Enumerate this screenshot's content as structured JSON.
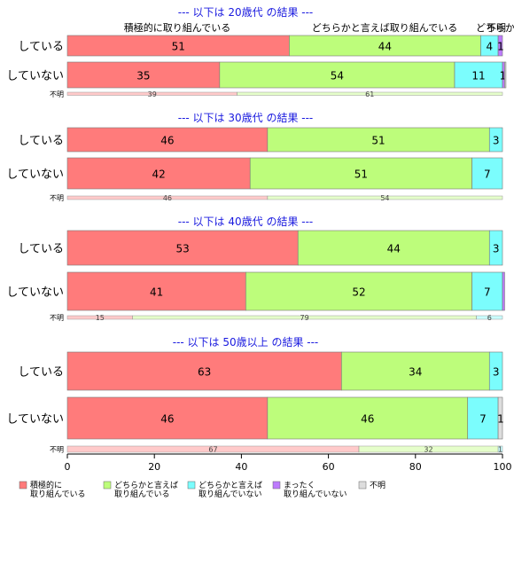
{
  "chart_data": {
    "type": "bar",
    "orientation": "horizontal",
    "stacked": true,
    "xlim": [
      0,
      100
    ],
    "xticks": [
      0,
      20,
      40,
      60,
      80,
      100
    ],
    "categories": [
      "積極的に取り組んでいる",
      "どちらかと言えば取り組んでいる",
      "どちらかと言えば取り組んでいない",
      "まったく取り組んでいない",
      "不明"
    ],
    "top_labels": [
      "積極的に取り組んでいる",
      "どちらかと言えば取り組んでいる",
      "どちらかと言えば取り組んでいない",
      "不明"
    ],
    "colors": [
      "#ff7b7b",
      "#bdfd7b",
      "#7bfdfd",
      "#bd7bfd",
      "#dddddd"
    ],
    "legend": {
      "position": "bottom",
      "items": [
        {
          "line1": "積極的に",
          "line2": "取り組んでいる"
        },
        {
          "line1": "どちらかと言えば",
          "line2": "取り組んでいる"
        },
        {
          "line1": "どちらかと言えば",
          "line2": "取り組んでいない"
        },
        {
          "line1": "まったく",
          "line2": "取り組んでいない"
        },
        {
          "line1": "不明",
          "line2": ""
        }
      ]
    },
    "panels": [
      {
        "title": "--- 以下は 20歳代 の結果 ---",
        "rows": [
          {
            "label": "している",
            "values": [
              51,
              44,
              4,
              1,
              0
            ],
            "labels": [
              "51",
              "44",
              "4",
              "1",
              ""
            ]
          },
          {
            "label": "していない",
            "values": [
              35,
              54,
              11,
              0.5,
              0.3
            ],
            "labels": [
              "35",
              "54",
              "11",
              "1",
              ""
            ]
          }
        ],
        "unknown": {
          "label": "不明",
          "values": [
            39,
            61,
            0,
            0,
            0
          ],
          "labels": [
            "39",
            "61",
            "",
            "",
            ""
          ]
        }
      },
      {
        "title": "--- 以下は 30歳代 の結果 ---",
        "rows": [
          {
            "label": "している",
            "values": [
              46,
              51,
              3,
              0,
              0
            ],
            "labels": [
              "46",
              "51",
              "3",
              "",
              ""
            ]
          },
          {
            "label": "していない",
            "values": [
              42,
              51,
              7,
              0,
              0
            ],
            "labels": [
              "42",
              "51",
              "7",
              "",
              ""
            ]
          }
        ],
        "unknown": {
          "label": "不明",
          "values": [
            46,
            54,
            0,
            0,
            0
          ],
          "labels": [
            "46",
            "54",
            "",
            "",
            ""
          ]
        }
      },
      {
        "title": "--- 以下は 40歳代 の結果 ---",
        "rows": [
          {
            "label": "している",
            "values": [
              53,
              44,
              3,
              0,
              0
            ],
            "labels": [
              "53",
              "44",
              "3",
              "",
              ""
            ]
          },
          {
            "label": "していない",
            "values": [
              41,
              52,
              7,
              0.5,
              0
            ],
            "labels": [
              "41",
              "52",
              "7",
              "",
              ""
            ]
          }
        ],
        "unknown": {
          "label": "不明",
          "values": [
            15,
            79,
            6,
            0,
            0
          ],
          "labels": [
            "15",
            "79",
            "6",
            "",
            ""
          ]
        }
      },
      {
        "title": "--- 以下は 50歳以上 の結果 ---",
        "rows": [
          {
            "label": "している",
            "values": [
              63,
              34,
              3,
              0,
              0
            ],
            "labels": [
              "63",
              "34",
              "3",
              "",
              ""
            ]
          },
          {
            "label": "していない",
            "values": [
              46,
              46,
              7,
              0,
              1
            ],
            "labels": [
              "46",
              "46",
              "7",
              "",
              "1"
            ]
          }
        ],
        "unknown": {
          "label": "不明",
          "values": [
            67,
            32,
            1,
            0,
            0
          ],
          "labels": [
            "67",
            "32",
            "1",
            "",
            ""
          ]
        }
      }
    ]
  }
}
